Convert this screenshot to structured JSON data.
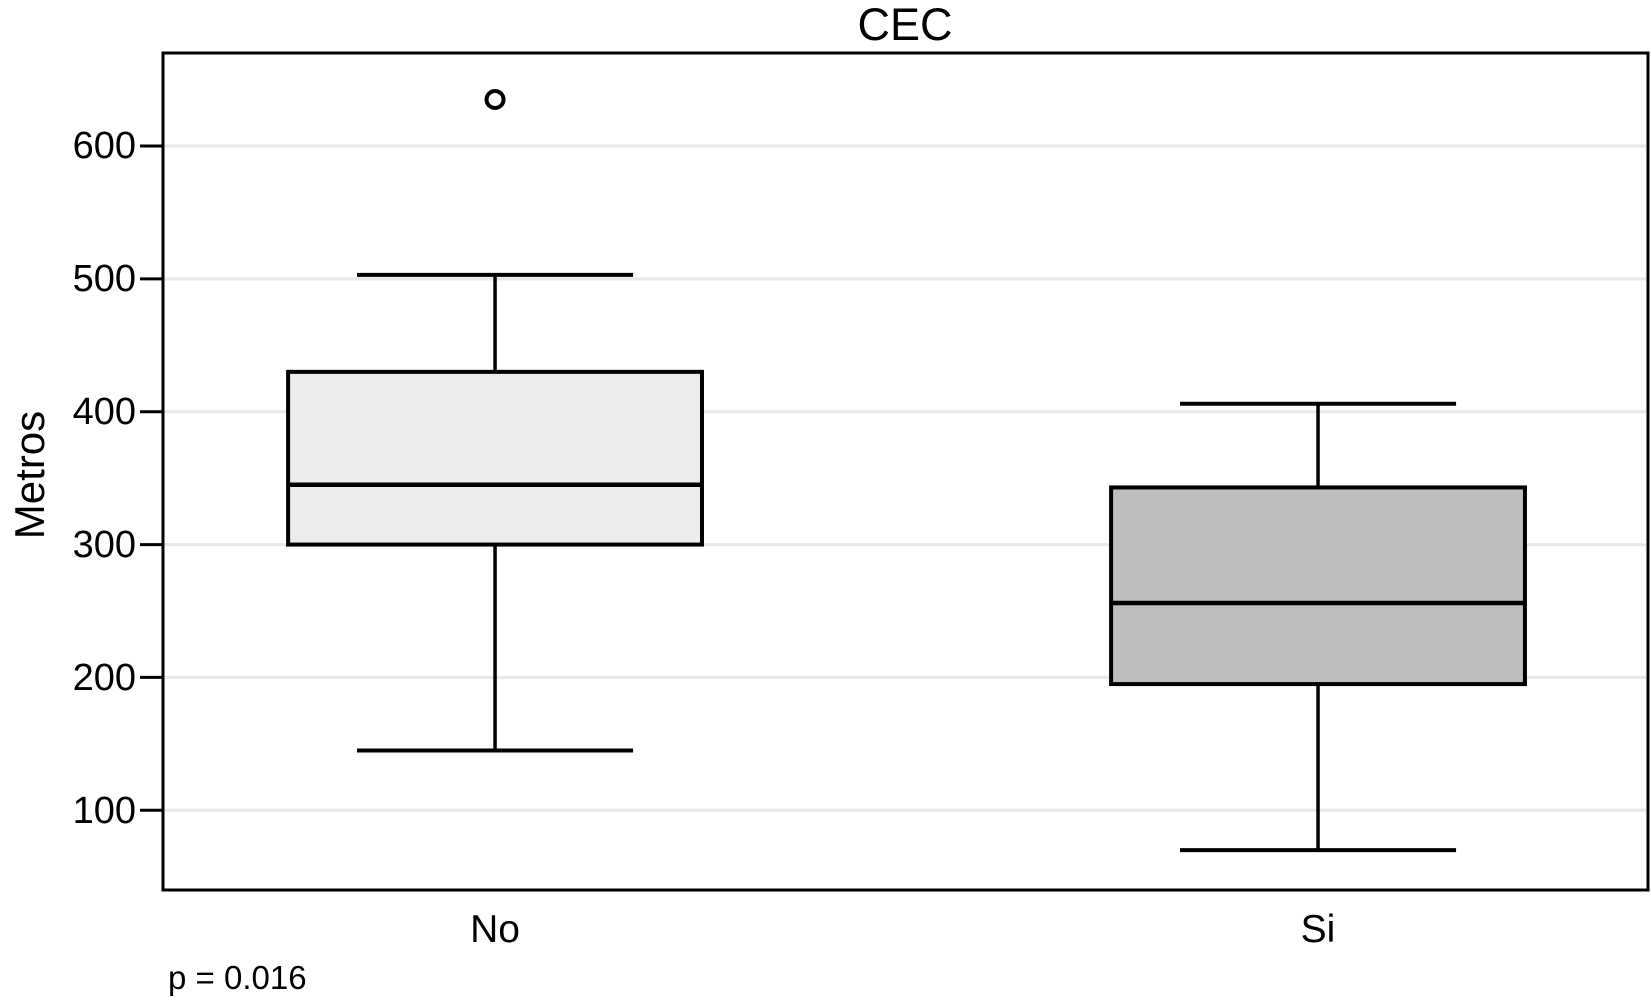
{
  "chart_data": {
    "type": "boxplot",
    "title": "CEC",
    "ylabel": "Metros",
    "xlabel": "",
    "annotation": "p = 0.016",
    "categories": [
      "No",
      "Si"
    ],
    "yticks": [
      100,
      200,
      300,
      400,
      500,
      600
    ],
    "ylim": [
      40,
      670
    ],
    "grid": true,
    "legend": "none",
    "series": [
      {
        "name": "No",
        "whisker_low": 145,
        "q1": 300,
        "median": 345,
        "q3": 430,
        "whisker_high": 503,
        "outliers": [
          635
        ],
        "box_fill": "#ececec"
      },
      {
        "name": "Si",
        "whisker_low": 70,
        "q1": 195,
        "median": 256,
        "q3": 343,
        "whisker_high": 406,
        "outliers": [],
        "box_fill": "#bdbdbd"
      }
    ],
    "layout": {
      "centers_frac": [
        0.2236,
        0.7778
      ],
      "box_width_frac": 0.2787,
      "cap_width_frac": 0.1859
    },
    "colors": {
      "stroke": "#000000",
      "gridline": "#e8e8e8",
      "background": "#ffffff",
      "outlier_fill": "#ffffff"
    }
  }
}
